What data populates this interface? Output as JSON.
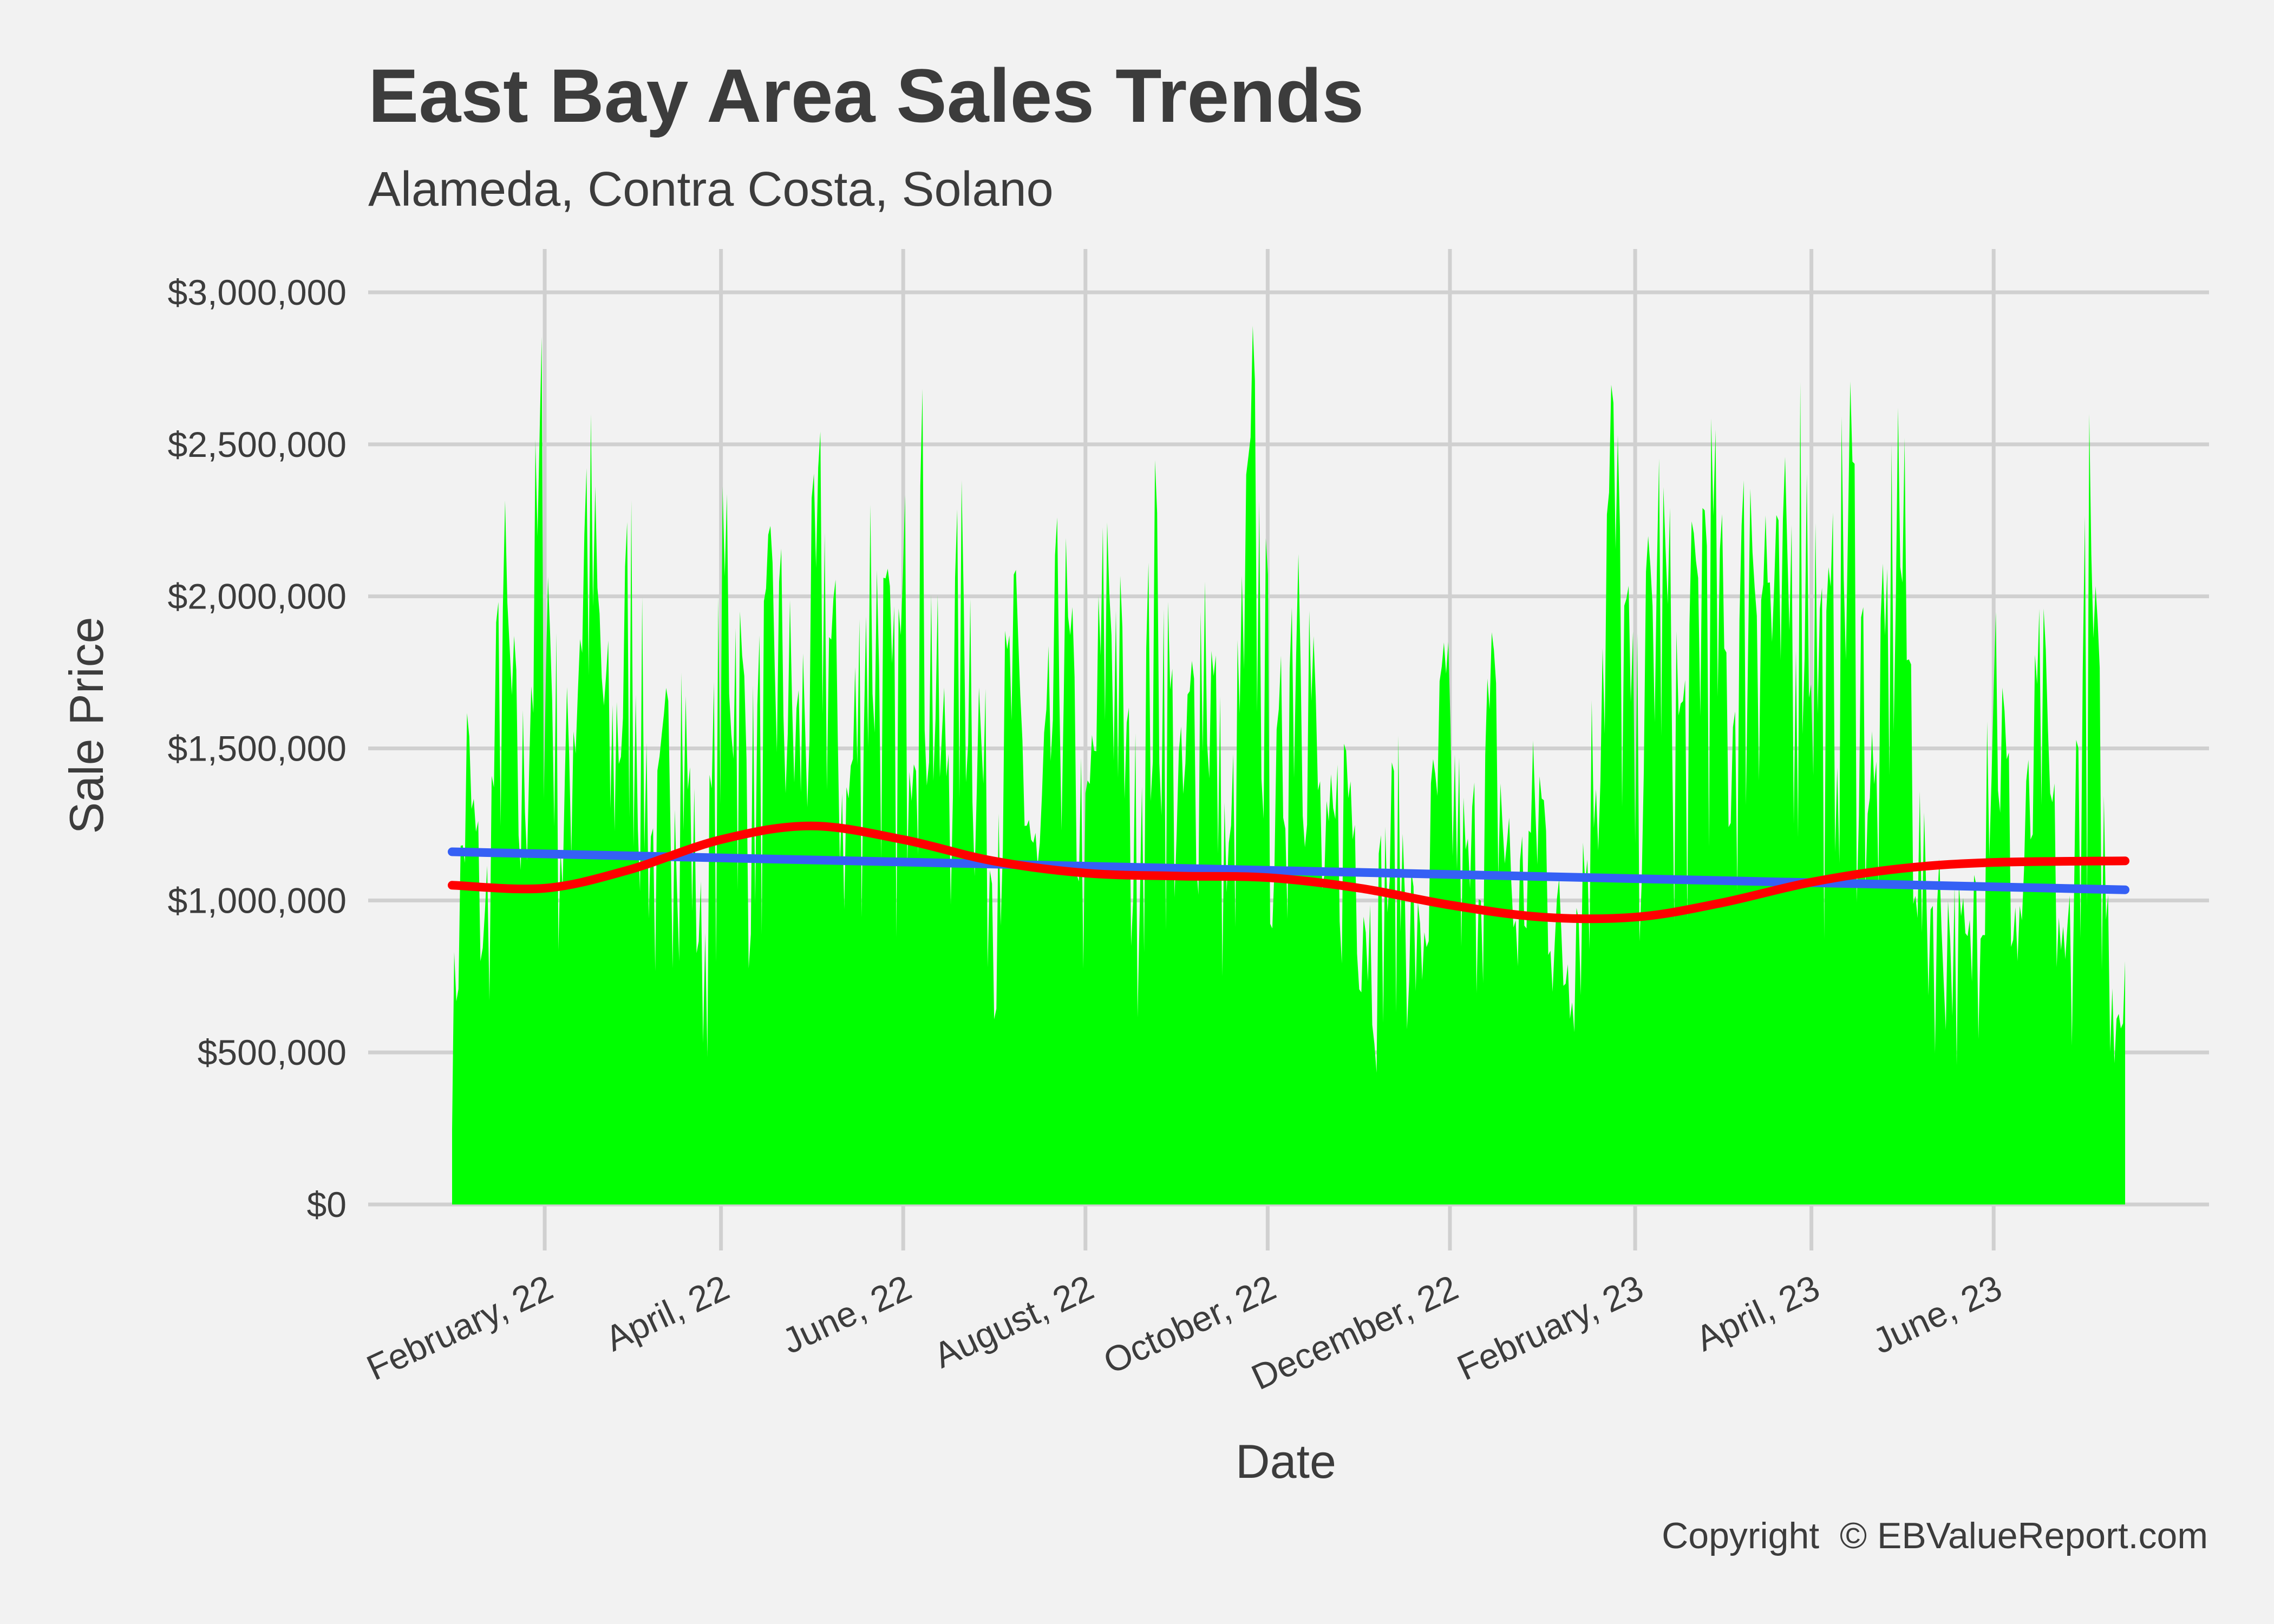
{
  "chart_data": {
    "type": "area",
    "title": "East Bay Area Sales Trends",
    "subtitle": "Alameda, Contra Costa, Solano",
    "xlabel": "Date",
    "ylabel": "Sale Price",
    "caption": "Copyright  © EBValueReport.com",
    "x_range": [
      "2022-01-01",
      "2023-07-15"
    ],
    "ylim": [
      0,
      3000000
    ],
    "y_ticks": [
      {
        "value": 0,
        "label": "$0"
      },
      {
        "value": 500000,
        "label": "$500,000"
      },
      {
        "value": 1000000,
        "label": "$1,000,000"
      },
      {
        "value": 1500000,
        "label": "$1,500,000"
      },
      {
        "value": 2000000,
        "label": "$2,000,000"
      },
      {
        "value": 2500000,
        "label": "$2,500,000"
      },
      {
        "value": 3000000,
        "label": "$3,000,000"
      }
    ],
    "x_ticks": [
      {
        "date": "2022-02-01",
        "label": "February, 22"
      },
      {
        "date": "2022-04-01",
        "label": "April, 22"
      },
      {
        "date": "2022-06-01",
        "label": "June, 22"
      },
      {
        "date": "2022-08-01",
        "label": "August, 22"
      },
      {
        "date": "2022-10-01",
        "label": "October, 22"
      },
      {
        "date": "2022-12-01",
        "label": "December, 22"
      },
      {
        "date": "2023-02-01",
        "label": "February, 23"
      },
      {
        "date": "2023-04-01",
        "label": "April, 23"
      },
      {
        "date": "2023-06-01",
        "label": "June, 23"
      }
    ],
    "grid": true,
    "series": [
      {
        "type": "area",
        "color": "#00ff00",
        "points": [
          [
            "2022-01-01",
            700000
          ],
          [
            "2022-01-06",
            1800000
          ],
          [
            "2022-01-12",
            1100000
          ],
          [
            "2022-01-18",
            2500000
          ],
          [
            "2022-01-24",
            1600000
          ],
          [
            "2022-01-31",
            3000000
          ],
          [
            "2022-02-07",
            1500000
          ],
          [
            "2022-02-15",
            2900000
          ],
          [
            "2022-02-23",
            1800000
          ],
          [
            "2022-03-02",
            2500000
          ],
          [
            "2022-03-10",
            1400000
          ],
          [
            "2022-03-18",
            2200000
          ],
          [
            "2022-03-26",
            1000000
          ],
          [
            "2022-04-03",
            2700000
          ],
          [
            "2022-04-11",
            1700000
          ],
          [
            "2022-04-19",
            2400000
          ],
          [
            "2022-04-27",
            1900000
          ],
          [
            "2022-05-05",
            2700000
          ],
          [
            "2022-05-13",
            1600000
          ],
          [
            "2022-05-21",
            2600000
          ],
          [
            "2022-05-29",
            2000000
          ],
          [
            "2022-06-06",
            2950000
          ],
          [
            "2022-06-14",
            1800000
          ],
          [
            "2022-06-22",
            2600000
          ],
          [
            "2022-06-30",
            1500000
          ],
          [
            "2022-07-08",
            2200000
          ],
          [
            "2022-07-16",
            1300000
          ],
          [
            "2022-07-24",
            2500000
          ],
          [
            "2022-08-01",
            1400000
          ],
          [
            "2022-08-09",
            2700000
          ],
          [
            "2022-08-17",
            1500000
          ],
          [
            "2022-08-25",
            2600000
          ],
          [
            "2022-09-02",
            1600000
          ],
          [
            "2022-09-10",
            2500000
          ],
          [
            "2022-09-18",
            1300000
          ],
          [
            "2022-09-26",
            3000000
          ],
          [
            "2022-10-04",
            1600000
          ],
          [
            "2022-10-12",
            2900000
          ],
          [
            "2022-10-20",
            1300000
          ],
          [
            "2022-10-28",
            1800000
          ],
          [
            "2022-11-05",
            1100000
          ],
          [
            "2022-11-13",
            1600000
          ],
          [
            "2022-11-21",
            1000000
          ],
          [
            "2022-11-29",
            2000000
          ],
          [
            "2022-12-07",
            1300000
          ],
          [
            "2022-12-15",
            2000000
          ],
          [
            "2022-12-23",
            1200000
          ],
          [
            "2022-12-31",
            1700000
          ],
          [
            "2023-01-08",
            1000000
          ],
          [
            "2023-01-16",
            1500000
          ],
          [
            "2023-01-24",
            3000000
          ],
          [
            "2023-02-01",
            1800000
          ],
          [
            "2023-02-09",
            2700000
          ],
          [
            "2023-02-17",
            1900000
          ],
          [
            "2023-02-25",
            2900000
          ],
          [
            "2023-03-05",
            2000000
          ],
          [
            "2023-03-13",
            3000000
          ],
          [
            "2023-03-21",
            2300000
          ],
          [
            "2023-03-29",
            2950000
          ],
          [
            "2023-04-06",
            2100000
          ],
          [
            "2023-04-14",
            2900000
          ],
          [
            "2023-04-22",
            1600000
          ],
          [
            "2023-04-30",
            3000000
          ],
          [
            "2023-05-08",
            1300000
          ],
          [
            "2023-05-16",
            1200000
          ],
          [
            "2023-05-24",
            1000000
          ],
          [
            "2023-06-01",
            2400000
          ],
          [
            "2023-06-09",
            1100000
          ],
          [
            "2023-06-17",
            2100000
          ],
          [
            "2023-06-25",
            900000
          ],
          [
            "2023-07-03",
            2650000
          ],
          [
            "2023-07-10",
            1000000
          ],
          [
            "2023-07-15",
            800000
          ]
        ]
      },
      {
        "type": "line",
        "color": "#3560f5",
        "points": [
          [
            "2022-01-01",
            1160000
          ],
          [
            "2023-07-15",
            1035000
          ]
        ]
      },
      {
        "type": "line",
        "color": "#ff0000",
        "points": [
          [
            "2022-01-01",
            1050000
          ],
          [
            "2022-02-01",
            1040000
          ],
          [
            "2022-03-01",
            1100000
          ],
          [
            "2022-04-01",
            1200000
          ],
          [
            "2022-05-01",
            1245000
          ],
          [
            "2022-06-01",
            1200000
          ],
          [
            "2022-07-01",
            1130000
          ],
          [
            "2022-08-01",
            1090000
          ],
          [
            "2022-09-01",
            1080000
          ],
          [
            "2022-10-01",
            1075000
          ],
          [
            "2022-11-01",
            1040000
          ],
          [
            "2022-12-01",
            985000
          ],
          [
            "2023-01-01",
            945000
          ],
          [
            "2023-02-01",
            945000
          ],
          [
            "2023-03-01",
            990000
          ],
          [
            "2023-04-01",
            1060000
          ],
          [
            "2023-05-01",
            1105000
          ],
          [
            "2023-06-01",
            1125000
          ],
          [
            "2023-07-15",
            1130000
          ]
        ]
      }
    ]
  }
}
